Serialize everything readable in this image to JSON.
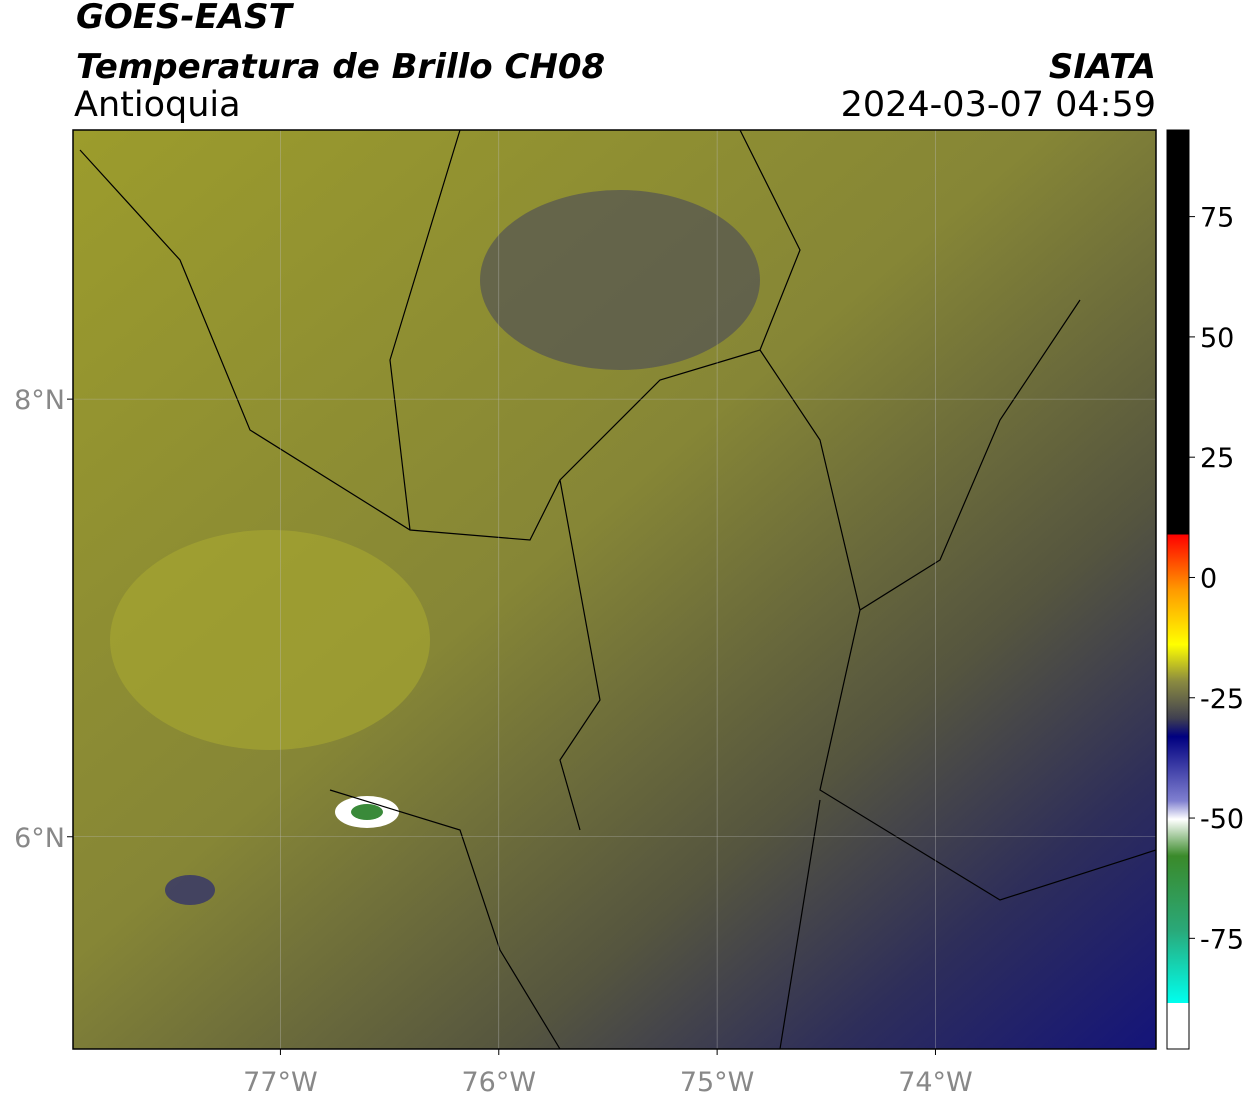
{
  "header": {
    "title": "GOES-EAST",
    "subtitle": "Temperatura de Brillo CH08",
    "region": "Antioquia",
    "source": "SIATA",
    "datetime": "2024-03-07 04:59"
  },
  "map": {
    "xlim": [
      -77.95,
      -72.99
    ],
    "ylim": [
      5.03,
      9.23
    ],
    "xticks": [
      {
        "value": -77,
        "label": "77°W"
      },
      {
        "value": -76,
        "label": "76°W"
      },
      {
        "value": -75,
        "label": "75°W"
      },
      {
        "value": -74,
        "label": "74°W"
      }
    ],
    "yticks": [
      {
        "value": 8,
        "label": "8°N"
      },
      {
        "value": 6,
        "label": "6°N"
      }
    ],
    "grid": true
  },
  "colorbar": {
    "lim": [
      -98,
      93
    ],
    "ticks": [
      75,
      50,
      25,
      0,
      -25,
      -50,
      -75
    ]
  }
}
